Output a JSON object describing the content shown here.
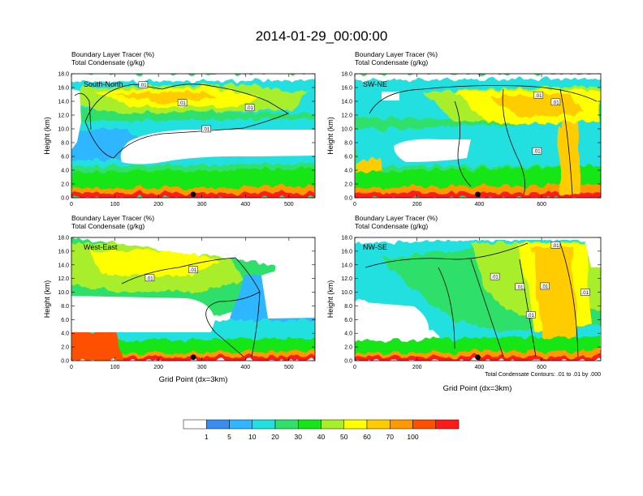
{
  "page": {
    "title": "2014-01-29_00:00:00",
    "panel_title_line1": "Boundary Layer Tracer   (%)",
    "panel_title_line2": "Total Condensate   (g/kg)",
    "x_axis_label": "Grid Point (dx=3km)",
    "contour_note": "Total Condensate Contours: .01 to .01 by .000"
  },
  "chart_data": [
    {
      "type": "heatmap",
      "panel": "South-North",
      "title_line1": "Boundary Layer Tracer   (%)",
      "title_line2": "Total Condensate   (g/kg)",
      "ylabel": "Height (km)",
      "xlabel": "",
      "xlim": [
        0,
        560
      ],
      "ylim": [
        0,
        18
      ],
      "x_ticks": [
        0,
        100,
        200,
        300,
        400,
        500
      ],
      "y_ticks": [
        0,
        2,
        4,
        6,
        8,
        10,
        12,
        14,
        16,
        18
      ],
      "marker_x": 280,
      "contour_labels": [
        {
          "text": ".01",
          "x": 165,
          "y": 16.4
        },
        {
          "text": ".01",
          "x": 255,
          "y": 13.8
        },
        {
          "text": ".01",
          "x": 410,
          "y": 13.1
        },
        {
          "text": ".01",
          "x": 310,
          "y": 10.0
        }
      ]
    },
    {
      "type": "heatmap",
      "panel": "SW-NE",
      "title_line1": "Boundary Layer Tracer   (%)",
      "title_line2": "Total Condensate   (g/kg)",
      "ylabel": "Height (km)",
      "xlabel": "",
      "xlim": [
        0,
        790
      ],
      "ylim": [
        0,
        18
      ],
      "x_ticks": [
        0,
        200,
        400,
        600
      ],
      "y_ticks": [
        0,
        2,
        4,
        6,
        8,
        10,
        12,
        14,
        16,
        18
      ],
      "marker_x": 395,
      "contour_labels": [
        {
          "text": ".01",
          "x": 590,
          "y": 14.9
        },
        {
          "text": ".01",
          "x": 645,
          "y": 13.9
        },
        {
          "text": ".01",
          "x": 585,
          "y": 6.8
        }
      ]
    },
    {
      "type": "heatmap",
      "panel": "West-East",
      "title_line1": "Boundary Layer Tracer   (%)",
      "title_line2": "Total Condensate   (g/kg)",
      "ylabel": "Height (km)",
      "xlabel": "Grid Point (dx=3km)",
      "xlim": [
        0,
        560
      ],
      "ylim": [
        0,
        18
      ],
      "x_ticks": [
        0,
        100,
        200,
        300,
        400,
        500
      ],
      "y_ticks": [
        0,
        2,
        4,
        6,
        8,
        10,
        12,
        14,
        16,
        18
      ],
      "marker_x": 280,
      "contour_labels": [
        {
          "text": ".01",
          "x": 280,
          "y": 13.3
        },
        {
          "text": ".01",
          "x": 180,
          "y": 12.1
        }
      ]
    },
    {
      "type": "heatmap",
      "panel": "NW-SE",
      "title_line1": "Boundary Layer Tracer   (%)",
      "title_line2": "Total Condensate   (g/kg)",
      "ylabel": "Height (km)",
      "xlabel": "Grid Point (dx=3km)",
      "xlim": [
        0,
        790
      ],
      "ylim": [
        0,
        18
      ],
      "x_ticks": [
        0,
        200,
        400,
        600
      ],
      "y_ticks": [
        0,
        2,
        4,
        6,
        8,
        10,
        12,
        14,
        16,
        18
      ],
      "marker_x": 395,
      "contour_labels": [
        {
          "text": ".01",
          "x": 645,
          "y": 16.9
        },
        {
          "text": ".01",
          "x": 450,
          "y": 12.3
        },
        {
          "text": ".01",
          "x": 530,
          "y": 10.8
        },
        {
          "text": ".01",
          "x": 610,
          "y": 10.9
        },
        {
          "text": ".01",
          "x": 740,
          "y": 10.0
        },
        {
          "text": ".01",
          "x": 565,
          "y": 6.7
        }
      ]
    }
  ],
  "colorbar": {
    "tick_labels": [
      "1",
      "5",
      "10",
      "20",
      "30",
      "40",
      "50",
      "60",
      "70",
      "100"
    ],
    "colors": [
      "#ffffff",
      "#3a8cf0",
      "#2fb6ff",
      "#23e0e0",
      "#2fe06a",
      "#15e617",
      "#a8ee2a",
      "#ffff00",
      "#ffcc00",
      "#ff9900",
      "#ff5000",
      "#ff1a1a"
    ]
  }
}
